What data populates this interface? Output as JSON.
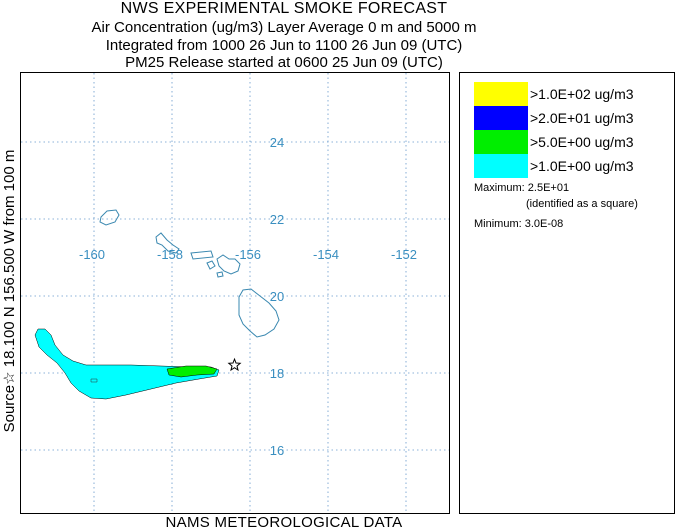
{
  "header": {
    "title": "NWS EXPERIMENTAL SMOKE FORECAST",
    "line2": "Air Concentration (ug/m3) Layer Average    0 m and  5000 m",
    "line3": "Integrated from 1000 26 Jun to 1100 26 Jun 09 (UTC)",
    "line4": "PM25 Release started at 0600 25 Jun 09 (UTC)"
  },
  "side_label": "Source☆ 18.100  N 156.500  W      from  100 m",
  "footer": "NAMS METEOROLOGICAL DATA",
  "map": {
    "lon_labels": [
      "-160",
      "-158",
      "-156",
      "-154",
      "-152"
    ],
    "lat_labels": [
      "24",
      "22",
      "20",
      "18",
      "16"
    ],
    "grid_lons": [
      -160,
      -158,
      -156,
      -154,
      -152
    ],
    "grid_lats": [
      24,
      22,
      20,
      18,
      16
    ],
    "source": {
      "lon": -156.5,
      "lat": 18.1,
      "icon": "star-icon"
    },
    "colors": {
      "grid": "#6699cc",
      "coast": "#3a88b0",
      "labels": "#3a8fc0",
      "plume_outer": "#00ffff",
      "plume_mid": "#00ee00"
    }
  },
  "legend": {
    "entries": [
      {
        "label": ">1.0E+02 ug/m3",
        "color": "#ffff00"
      },
      {
        "label": ">2.0E+01 ug/m3",
        "color": "#0000ff"
      },
      {
        "label": ">5.0E+00 ug/m3",
        "color": "#00ee00"
      },
      {
        "label": ">1.0E+00 ug/m3",
        "color": "#00ffff"
      }
    ],
    "maximum": "Maximum: 2.5E+01",
    "maximum_note": "(identified as a square)",
    "minimum": "Minimum: 3.0E-08"
  }
}
